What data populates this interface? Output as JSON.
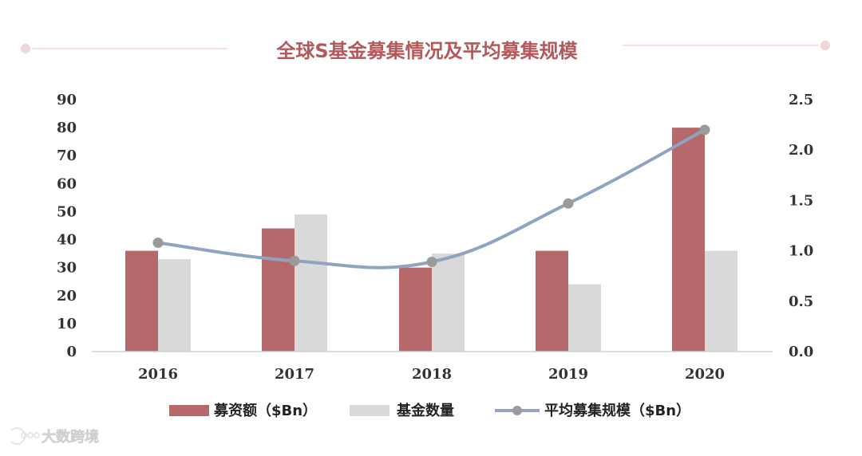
{
  "title": "全球S基金募集情况及平均募集规模",
  "watermark": "大数跨境",
  "colors": {
    "title": "#b5585a",
    "amount": "#b5696a",
    "count": "#d9d9d9",
    "avg": "#8ea4c2",
    "avg_marker": "#9a9a9a",
    "axis_text": "#333333",
    "deco": "#f0d6d6"
  },
  "chart_data": {
    "type": "bar",
    "categories": [
      "2016",
      "2017",
      "2018",
      "2019",
      "2020"
    ],
    "series": [
      {
        "name": "募资额（$Bn）",
        "type": "bar",
        "axis": "left",
        "values": [
          36,
          44,
          30,
          36,
          80
        ]
      },
      {
        "name": "基金数量",
        "type": "bar",
        "axis": "left",
        "values": [
          33,
          49,
          35,
          24,
          36
        ]
      },
      {
        "name": "平均募集规模（$Bn）",
        "type": "line",
        "axis": "right",
        "values": [
          1.08,
          0.9,
          0.89,
          1.47,
          2.2
        ]
      }
    ],
    "y_left": {
      "min": 0,
      "max": 90,
      "ticks": [
        "0",
        "10",
        "20",
        "30",
        "40",
        "50",
        "60",
        "70",
        "80",
        "90"
      ]
    },
    "y_right": {
      "min": 0,
      "max": 2.5,
      "ticks": [
        "0.0",
        "0.5",
        "1.0",
        "1.5",
        "2.0",
        "2.5"
      ]
    },
    "grid": false,
    "legend_position": "bottom"
  }
}
